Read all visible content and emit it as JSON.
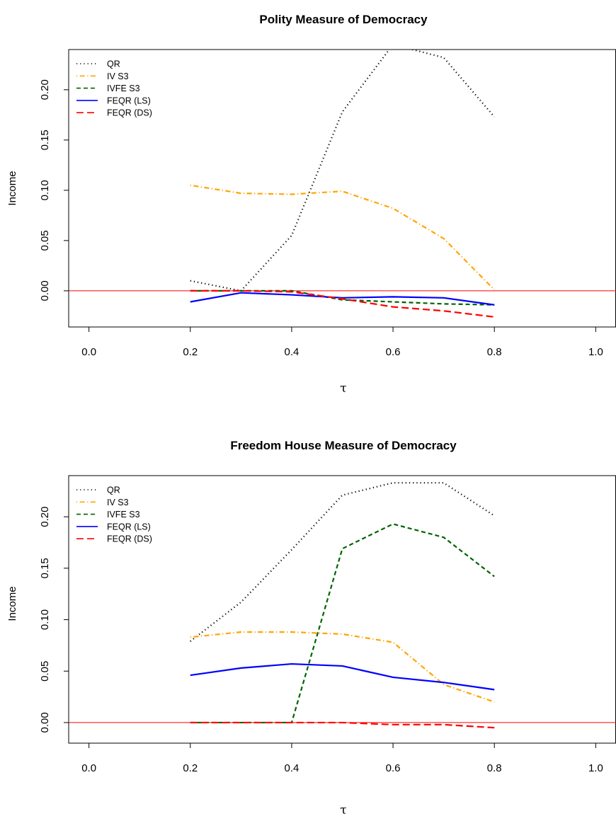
{
  "chart_data": [
    {
      "type": "line",
      "title": "Polity Measure of Democracy",
      "xlabel": "τ",
      "ylabel": "Income",
      "xlim": [
        -0.04,
        1.04
      ],
      "ylim": [
        -0.036,
        0.24
      ],
      "xticks": [
        0.0,
        0.2,
        0.4,
        0.6,
        0.8,
        1.0
      ],
      "xtick_labels": [
        "0.0",
        "0.2",
        "0.4",
        "0.6",
        "0.8",
        "1.0"
      ],
      "yticks": [
        0.0,
        0.05,
        0.1,
        0.15,
        0.2
      ],
      "ytick_labels": [
        "0.00",
        "0.05",
        "0.10",
        "0.15",
        "0.20"
      ],
      "hline": {
        "y": 0,
        "color": "#ff0000"
      },
      "legend_position": "top-left",
      "x": [
        0.2,
        0.3,
        0.4,
        0.5,
        0.6,
        0.7,
        0.8
      ],
      "series": [
        {
          "name": "QR",
          "color": "#000000",
          "style": "dotted",
          "values": [
            0.01,
            0.0,
            0.055,
            0.178,
            0.245,
            0.232,
            0.173
          ]
        },
        {
          "name": "IV S3",
          "color": "#ffa500",
          "style": "dotdash",
          "values": [
            0.105,
            0.097,
            0.096,
            0.099,
            0.082,
            0.052,
            0.001
          ]
        },
        {
          "name": "IVFE S3",
          "color": "#006400",
          "style": "dashed",
          "values": [
            0.0,
            0.0,
            0.0,
            -0.009,
            -0.011,
            -0.013,
            -0.014
          ]
        },
        {
          "name": "FEQR (LS)",
          "color": "#0000ff",
          "style": "solid",
          "values": [
            -0.011,
            -0.002,
            -0.004,
            -0.007,
            -0.006,
            -0.007,
            -0.014
          ]
        },
        {
          "name": "FEQR (DS)",
          "color": "#ff0000",
          "style": "longdash",
          "values": [
            0.0,
            0.0,
            -0.001,
            -0.008,
            -0.016,
            -0.02,
            -0.026
          ]
        }
      ]
    },
    {
      "type": "line",
      "title": "Freedom House Measure of Democracy",
      "xlabel": "τ",
      "ylabel": "Income",
      "xlim": [
        -0.04,
        1.04
      ],
      "ylim": [
        -0.02,
        0.24
      ],
      "xticks": [
        0.0,
        0.2,
        0.4,
        0.6,
        0.8,
        1.0
      ],
      "xtick_labels": [
        "0.0",
        "0.2",
        "0.4",
        "0.6",
        "0.8",
        "1.0"
      ],
      "yticks": [
        0.0,
        0.05,
        0.1,
        0.15,
        0.2
      ],
      "ytick_labels": [
        "0.00",
        "0.05",
        "0.10",
        "0.15",
        "0.20"
      ],
      "hline": {
        "y": 0,
        "color": "#ff0000"
      },
      "legend_position": "top-left",
      "x": [
        0.2,
        0.3,
        0.4,
        0.5,
        0.6,
        0.7,
        0.8
      ],
      "series": [
        {
          "name": "QR",
          "color": "#000000",
          "style": "dotted",
          "values": [
            0.079,
            0.117,
            0.168,
            0.221,
            0.233,
            0.233,
            0.201
          ]
        },
        {
          "name": "IV S3",
          "color": "#ffa500",
          "style": "dotdash",
          "values": [
            0.083,
            0.088,
            0.088,
            0.086,
            0.078,
            0.037,
            0.02
          ]
        },
        {
          "name": "IVFE S3",
          "color": "#006400",
          "style": "dashed",
          "values": [
            0.0,
            0.0,
            0.0,
            0.169,
            0.193,
            0.18,
            0.142
          ]
        },
        {
          "name": "FEQR (LS)",
          "color": "#0000ff",
          "style": "solid",
          "values": [
            0.046,
            0.053,
            0.057,
            0.055,
            0.044,
            0.039,
            0.032
          ]
        },
        {
          "name": "FEQR (DS)",
          "color": "#ff0000",
          "style": "longdash",
          "values": [
            0.0,
            0.0,
            0.0,
            0.0,
            -0.002,
            -0.002,
            -0.005
          ]
        }
      ]
    }
  ]
}
